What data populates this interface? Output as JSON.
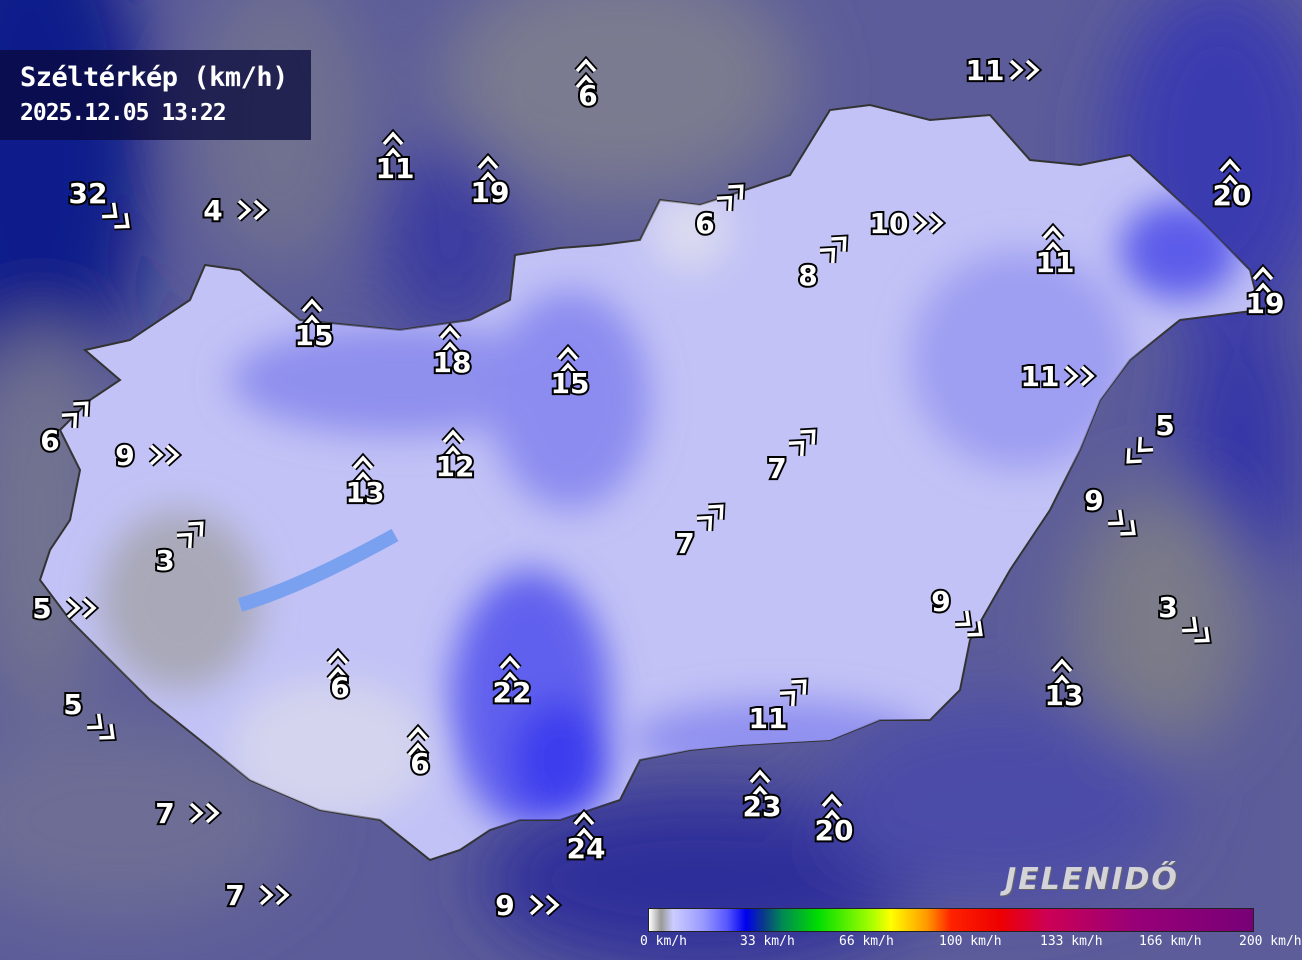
{
  "header": {
    "title": "Széltérkép (km/h)",
    "timestamp": "2025.12.05 13:22"
  },
  "legend": {
    "labels": [
      "0 km/h",
      "33 km/h",
      "66 km/h",
      "100 km/h",
      "133 km/h",
      "166 km/h",
      "200 km/h"
    ],
    "range_kmh": [
      0,
      200
    ]
  },
  "logo": "JELENIDŐ",
  "colors": {
    "calm": "#c4c4f6",
    "light": "#9a9af0",
    "moderate": "#4d4de6",
    "gray_terrain": "#6e6e8e",
    "strong": "#0a1a90"
  },
  "wind_labels": [
    {
      "value": "32",
      "dir": "SE"
    },
    {
      "value": "4",
      "dir": "E"
    },
    {
      "value": "11",
      "dir": "N"
    },
    {
      "value": "19",
      "dir": "N"
    },
    {
      "value": "6",
      "dir": "N"
    },
    {
      "value": "11",
      "dir": "E"
    },
    {
      "value": "20",
      "dir": "N"
    },
    {
      "value": "19",
      "dir": "N"
    },
    {
      "value": "6",
      "dir": "NE"
    },
    {
      "value": "10",
      "dir": "E"
    },
    {
      "value": "8",
      "dir": "NE"
    },
    {
      "value": "11",
      "dir": "N"
    },
    {
      "value": "15",
      "dir": "N"
    },
    {
      "value": "18",
      "dir": "N"
    },
    {
      "value": "15",
      "dir": "N"
    },
    {
      "value": "11",
      "dir": "E"
    },
    {
      "value": "6",
      "dir": "NE"
    },
    {
      "value": "9",
      "dir": "E"
    },
    {
      "value": "5",
      "dir": "SW"
    },
    {
      "value": "13",
      "dir": "N"
    },
    {
      "value": "12",
      "dir": "N"
    },
    {
      "value": "7",
      "dir": "NE"
    },
    {
      "value": "9",
      "dir": "SE"
    },
    {
      "value": "7",
      "dir": "NE"
    },
    {
      "value": "3",
      "dir": "NE"
    },
    {
      "value": "5",
      "dir": "E"
    },
    {
      "value": "9",
      "dir": "SE"
    },
    {
      "value": "3",
      "dir": "SE"
    },
    {
      "value": "6",
      "dir": "N"
    },
    {
      "value": "22",
      "dir": "N"
    },
    {
      "value": "11",
      "dir": "NE"
    },
    {
      "value": "13",
      "dir": "N"
    },
    {
      "value": "5",
      "dir": "SE"
    },
    {
      "value": "6",
      "dir": "N"
    },
    {
      "value": "7",
      "dir": "E"
    },
    {
      "value": "23",
      "dir": "N"
    },
    {
      "value": "20",
      "dir": "N"
    },
    {
      "value": "24",
      "dir": "N"
    },
    {
      "value": "7",
      "dir": "E"
    },
    {
      "value": "9",
      "dir": "E"
    }
  ]
}
